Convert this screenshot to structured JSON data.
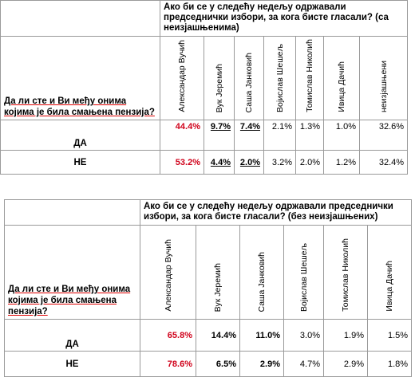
{
  "tables": [
    {
      "question": "Ако би се у следећу недељу одржавали председнички избори, за кога бисте гласали? (са неизјашњенима)",
      "row_question": "Да ли сте и Ви међу онима којима је била смањена пензија?",
      "columns": [
        "Александар Вучић",
        "Вук Јеремић",
        "Саша Јанковић",
        "Војислав Шешељ",
        "Томислав Николић",
        "Ивица Дачић",
        "неизјашњени"
      ],
      "rows": [
        {
          "label": "ДА",
          "values": [
            "44.4%",
            "9.7%",
            "7.4%",
            "2.1%",
            "1.3%",
            "1.0%",
            "32.6%"
          ]
        },
        {
          "label": "НЕ",
          "values": [
            "53.2%",
            "4.4%",
            "2.0%",
            "3.2%",
            "2.0%",
            "1.2%",
            "32.4%"
          ]
        }
      ]
    },
    {
      "question": "Ако би се у следећу недељу одржавали председнички избори, за кога бисте гласали? (без неизјашњених)",
      "row_question": "Да ли сте и Ви међу онима којима је била смањена пензија?",
      "columns": [
        "Александар Вучић",
        "Вук Јеремић",
        "Саша Јанковић",
        "Војислав Шешељ",
        "Томислав Николић",
        "Ивица Дачић"
      ],
      "rows": [
        {
          "label": "ДА",
          "values": [
            "65.8%",
            "14.4%",
            "11.0%",
            "3.0%",
            "1.9%",
            "1.5%"
          ]
        },
        {
          "label": "НЕ",
          "values": [
            "78.6%",
            "6.5%",
            "2.9%",
            "4.7%",
            "2.9%",
            "1.8%"
          ]
        }
      ]
    }
  ]
}
